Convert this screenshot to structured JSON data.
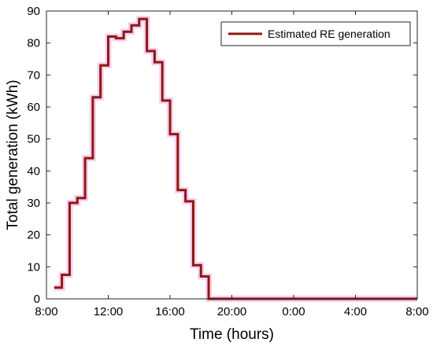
{
  "chart_data": {
    "type": "line",
    "step": true,
    "xlabel": "Time (hours)",
    "ylabel": "Total generation (kWh)",
    "xlim": [
      8,
      32
    ],
    "ylim": [
      0,
      90
    ],
    "x_ticks": [
      {
        "value": 8,
        "label": "8:00"
      },
      {
        "value": 12,
        "label": "12:00"
      },
      {
        "value": 16,
        "label": "16:00"
      },
      {
        "value": 20,
        "label": "20:00"
      },
      {
        "value": 24,
        "label": "0:00"
      },
      {
        "value": 28,
        "label": "4:00"
      },
      {
        "value": 32,
        "label": "8:00"
      }
    ],
    "y_ticks": [
      0,
      10,
      20,
      30,
      40,
      50,
      60,
      70,
      80,
      90
    ],
    "grid": false,
    "legend_position": "top-right",
    "series": [
      {
        "name": "Estimated RE generation",
        "color": "#8b1a0e",
        "halo_color": "#f8c8f0",
        "x": [
          8.5,
          9.0,
          9.5,
          10.0,
          10.5,
          11.0,
          11.5,
          12.0,
          12.5,
          13.0,
          13.5,
          14.0,
          14.5,
          15.0,
          15.5,
          16.0,
          16.5,
          17.0,
          17.5,
          18.0,
          18.5,
          19.0,
          19.5,
          20.0,
          20.5,
          21.0,
          21.5,
          22.0,
          22.5,
          23.0,
          23.5,
          24.0,
          24.5,
          25.0,
          25.5,
          26.0,
          26.5,
          27.0,
          27.5,
          28.0,
          28.5,
          29.0,
          29.5,
          30.0,
          30.5,
          31.0,
          31.5,
          32.0
        ],
        "values": [
          3.5,
          7.5,
          30,
          31.5,
          44,
          63,
          73,
          82,
          81.5,
          83.5,
          85.5,
          87.5,
          77.5,
          74,
          62,
          51.5,
          34,
          30.5,
          10.5,
          7,
          0,
          0,
          0,
          0,
          0,
          0,
          0,
          0,
          0,
          0,
          0,
          0,
          0,
          0,
          0,
          0,
          0,
          0,
          0,
          0,
          0,
          0,
          0,
          0,
          0,
          0,
          0,
          0
        ]
      }
    ]
  }
}
